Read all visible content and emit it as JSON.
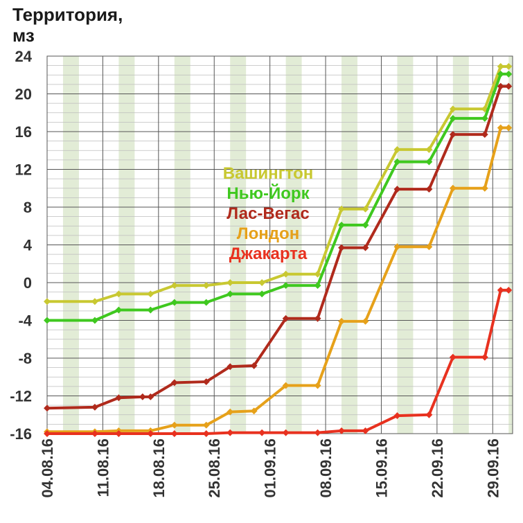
{
  "chart_data": {
    "type": "line",
    "title": "",
    "ylabel": "Территория, мз",
    "xlabel": "",
    "ylim": [
      -16,
      24
    ],
    "yticks": [
      24,
      20,
      16,
      12,
      8,
      4,
      0,
      -4,
      -8,
      -12,
      -16
    ],
    "x": [
      "04.08.16",
      "05.08.16",
      "06.08.16",
      "07.08.16",
      "08.08.16",
      "09.08.16",
      "10.08.16",
      "11.08.16",
      "12.08.16",
      "13.08.16",
      "14.08.16",
      "15.08.16",
      "16.08.16",
      "17.08.16",
      "18.08.16",
      "19.08.16",
      "20.08.16",
      "21.08.16",
      "22.08.16",
      "23.08.16",
      "24.08.16",
      "25.08.16",
      "26.08.16",
      "27.08.16",
      "28.08.16",
      "29.08.16",
      "30.08.16",
      "31.08.16",
      "01.09.16",
      "02.09.16",
      "03.09.16",
      "04.09.16",
      "05.09.16",
      "06.09.16",
      "07.09.16",
      "08.09.16",
      "09.09.16",
      "10.09.16",
      "11.09.16",
      "12.09.16",
      "13.09.16",
      "14.09.16",
      "15.09.16",
      "16.09.16",
      "17.09.16",
      "18.09.16",
      "19.09.16",
      "20.09.16",
      "21.09.16",
      "22.09.16",
      "23.09.16",
      "24.09.16",
      "25.09.16",
      "26.09.16",
      "27.09.16",
      "28.09.16",
      "29.09.16",
      "30.09.16"
    ],
    "xtick_labels": [
      "04.08.16",
      "11.08.16",
      "18.08.16",
      "25.08.16",
      "01.09.16",
      "08.09.16",
      "15.09.16",
      "22.09.16",
      "29.09.16"
    ],
    "weekend_shading_color": "#e2ecd6",
    "series": [
      {
        "name": "Вашингтон",
        "color": "#c8c831",
        "points": [
          [
            "04.08.16",
            -2
          ],
          [
            "10.08.16",
            -2
          ],
          [
            "13.08.16",
            -1.2
          ],
          [
            "17.08.16",
            -1.2
          ],
          [
            "20.08.16",
            -0.3
          ],
          [
            "24.08.16",
            -0.3
          ],
          [
            "27.08.16",
            0
          ],
          [
            "31.08.16",
            0
          ],
          [
            "03.09.16",
            0.9
          ],
          [
            "07.09.16",
            0.9
          ],
          [
            "10.09.16",
            7.8
          ],
          [
            "13.09.16",
            7.8
          ],
          [
            "17.09.16",
            14.1
          ],
          [
            "21.09.16",
            14.1
          ],
          [
            "24.09.16",
            18.4
          ],
          [
            "28.09.16",
            18.4
          ],
          [
            "30.09.16",
            22.9
          ],
          [
            "01.10.16",
            22.9
          ]
        ]
      },
      {
        "name": "Нью-Йорк",
        "color": "#3fc81f",
        "points": [
          [
            "04.08.16",
            -4
          ],
          [
            "10.08.16",
            -4
          ],
          [
            "13.08.16",
            -2.9
          ],
          [
            "17.08.16",
            -2.9
          ],
          [
            "20.08.16",
            -2.1
          ],
          [
            "24.08.16",
            -2.1
          ],
          [
            "27.08.16",
            -1.2
          ],
          [
            "31.08.16",
            -1.2
          ],
          [
            "03.09.16",
            -0.3
          ],
          [
            "07.09.16",
            -0.3
          ],
          [
            "10.09.16",
            6.1
          ],
          [
            "13.09.16",
            6.1
          ],
          [
            "17.09.16",
            12.8
          ],
          [
            "21.09.16",
            12.8
          ],
          [
            "24.09.16",
            17.4
          ],
          [
            "28.09.16",
            17.4
          ],
          [
            "30.09.16",
            22.1
          ],
          [
            "01.10.16",
            22.1
          ]
        ]
      },
      {
        "name": "Лас-Вегас",
        "color": "#b02a1c",
        "points": [
          [
            "04.08.16",
            -13.3
          ],
          [
            "10.08.16",
            -13.2
          ],
          [
            "13.08.16",
            -12.2
          ],
          [
            "16.08.16",
            -12.1
          ],
          [
            "17.08.16",
            -12.1
          ],
          [
            "20.08.16",
            -10.6
          ],
          [
            "24.08.16",
            -10.5
          ],
          [
            "27.08.16",
            -8.9
          ],
          [
            "30.08.16",
            -8.8
          ],
          [
            "03.09.16",
            -3.8
          ],
          [
            "07.09.16",
            -3.8
          ],
          [
            "10.09.16",
            3.7
          ],
          [
            "13.09.16",
            3.7
          ],
          [
            "17.09.16",
            9.9
          ],
          [
            "21.09.16",
            9.9
          ],
          [
            "24.09.16",
            15.7
          ],
          [
            "28.09.16",
            15.7
          ],
          [
            "30.09.16",
            20.8
          ],
          [
            "01.10.16",
            20.8
          ]
        ]
      },
      {
        "name": "Лондон",
        "color": "#e6a11a",
        "points": [
          [
            "04.08.16",
            -15.8
          ],
          [
            "10.08.16",
            -15.8
          ],
          [
            "13.08.16",
            -15.7
          ],
          [
            "17.08.16",
            -15.7
          ],
          [
            "20.08.16",
            -15.1
          ],
          [
            "24.08.16",
            -15.1
          ],
          [
            "27.08.16",
            -13.7
          ],
          [
            "30.08.16",
            -13.6
          ],
          [
            "03.09.16",
            -10.9
          ],
          [
            "07.09.16",
            -10.9
          ],
          [
            "10.09.16",
            -4.1
          ],
          [
            "13.09.16",
            -4.1
          ],
          [
            "17.09.16",
            3.8
          ],
          [
            "21.09.16",
            3.8
          ],
          [
            "24.09.16",
            10
          ],
          [
            "28.09.16",
            10
          ],
          [
            "30.09.16",
            16.4
          ],
          [
            "01.10.16",
            16.4
          ]
        ]
      },
      {
        "name": "Джакарта",
        "color": "#e8311f",
        "points": [
          [
            "04.08.16",
            -16
          ],
          [
            "10.08.16",
            -16
          ],
          [
            "13.08.16",
            -16
          ],
          [
            "17.08.16",
            -16
          ],
          [
            "20.08.16",
            -16
          ],
          [
            "24.08.16",
            -16
          ],
          [
            "27.08.16",
            -15.9
          ],
          [
            "31.08.16",
            -15.9
          ],
          [
            "03.09.16",
            -15.9
          ],
          [
            "07.09.16",
            -15.9
          ],
          [
            "10.09.16",
            -15.7
          ],
          [
            "13.09.16",
            -15.7
          ],
          [
            "17.09.16",
            -14.1
          ],
          [
            "21.09.16",
            -14
          ],
          [
            "24.09.16",
            -7.9
          ],
          [
            "28.09.16",
            -7.9
          ],
          [
            "30.09.16",
            -0.8
          ],
          [
            "01.10.16",
            -0.8
          ]
        ]
      }
    ]
  },
  "title_lines": [
    "Территория,",
    "мз"
  ],
  "legend": [
    {
      "label": "Вашингтон",
      "color": "#c8c831"
    },
    {
      "label": "Нью-Йорк",
      "color": "#3fc81f"
    },
    {
      "label": "Лас-Вегас",
      "color": "#b02a1c"
    },
    {
      "label": "Лондон",
      "color": "#e6a11a"
    },
    {
      "label": "Джакарта",
      "color": "#e8311f"
    }
  ]
}
